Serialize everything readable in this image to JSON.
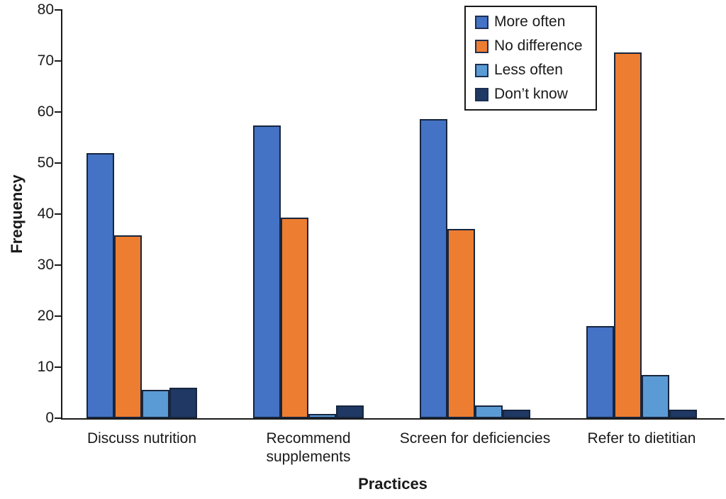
{
  "chart_data": {
    "type": "bar",
    "title": "",
    "ylabel": "Frequency",
    "xlabel": "Practices",
    "ylim": [
      0,
      80
    ],
    "ytick_step": 10,
    "grid": false,
    "legend_position": "top-right",
    "categories": [
      "Discuss nutrition",
      "Recommend\nsupplements",
      "Screen for deficiencies",
      "Refer to dietitian"
    ],
    "series": [
      {
        "name": "More often",
        "color": "#4472C4",
        "values": [
          52.0,
          57.3,
          58.6,
          18.0
        ]
      },
      {
        "name": "No difference",
        "color": "#ED7D31",
        "values": [
          35.8,
          39.3,
          37.1,
          71.7
        ]
      },
      {
        "name": "Less often",
        "color": "#5B9BD5",
        "values": [
          5.6,
          0.9,
          2.5,
          8.5
        ]
      },
      {
        "name": "Don’t know",
        "color": "#1F3864",
        "values": [
          6.0,
          2.5,
          1.7,
          1.7
        ]
      }
    ],
    "colors": {
      "axis": "#1a1a1a",
      "bar_border": "#17263E",
      "legend_border": "#1a1a1a"
    }
  }
}
